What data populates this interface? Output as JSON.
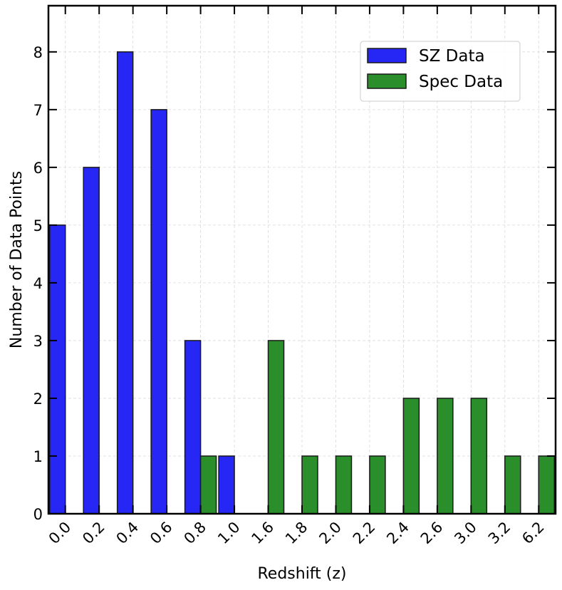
{
  "chart_data": {
    "type": "bar",
    "title": "",
    "xlabel": "Redshift (z)",
    "ylabel": "Number of Data Points",
    "categories": [
      "0.0",
      "0.2",
      "0.4",
      "0.6",
      "0.8",
      "1.0",
      "1.6",
      "1.8",
      "2.0",
      "2.2",
      "2.4",
      "2.6",
      "3.0",
      "3.2",
      "6.2"
    ],
    "series": [
      {
        "name": "SZ Data",
        "color": "#2626f5",
        "values": [
          5,
          6,
          8,
          7,
          3,
          1,
          0,
          0,
          0,
          0,
          0,
          0,
          0,
          0,
          0
        ]
      },
      {
        "name": "Spec Data",
        "color": "#2a8f2a",
        "values": [
          0,
          0,
          0,
          0,
          1,
          0,
          3,
          1,
          1,
          1,
          2,
          2,
          2,
          1,
          1
        ]
      }
    ],
    "ylim": [
      0,
      8.8
    ],
    "yticks": [
      0,
      1,
      2,
      3,
      4,
      5,
      6,
      7,
      8
    ],
    "grid": true,
    "legend_position": "top-right"
  }
}
